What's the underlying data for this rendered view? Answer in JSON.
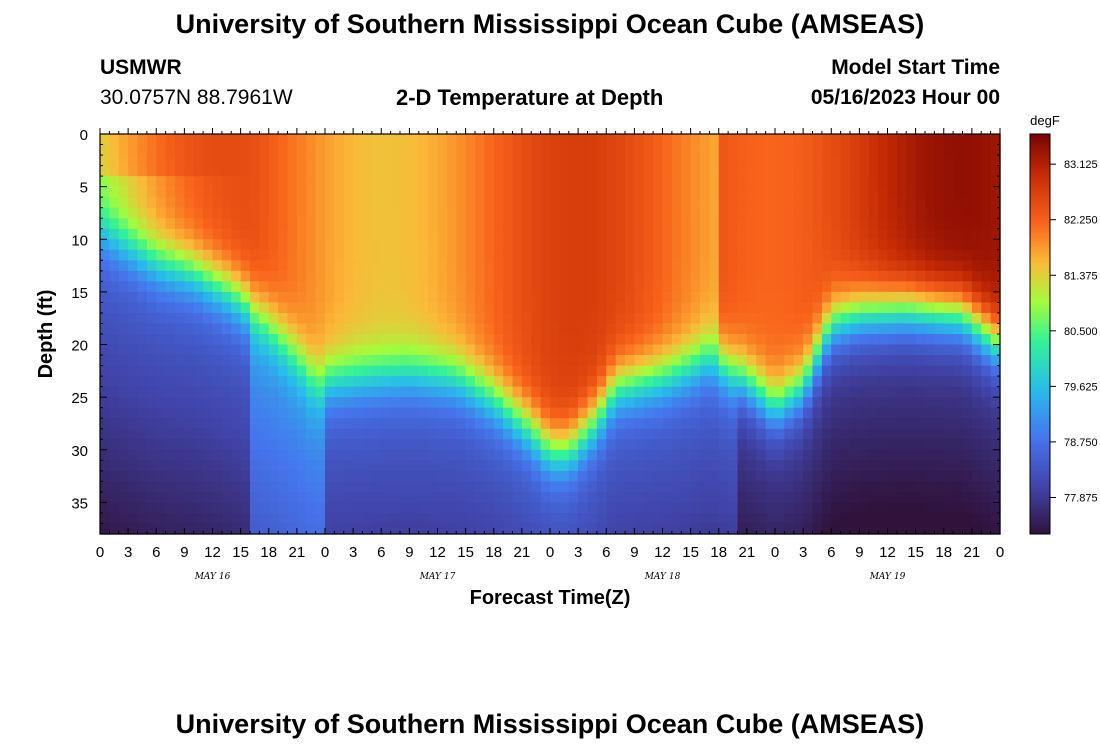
{
  "page": {
    "title": "University of Southern Mississippi Ocean Cube (AMSEAS)",
    "title_repeat": "University of Southern Mississippi Ocean Cube (AMSEAS)",
    "station_name": "USMWR",
    "station_coords": "30.0757N  88.7961W",
    "plot_title": "2-D Temperature at Depth",
    "model_start_label": "Model Start Time",
    "model_start_value": "05/16/2023 Hour 00"
  },
  "chart_data": {
    "type": "heatmap",
    "title": "2-D Temperature at Depth",
    "xlabel": "Forecast Time(Z)",
    "ylabel": "Depth (ft)",
    "x_range_hours": [
      0,
      96
    ],
    "x_tick_labels": [
      "0",
      "3",
      "6",
      "9",
      "12",
      "15",
      "18",
      "21",
      "0",
      "3",
      "6",
      "9",
      "12",
      "15",
      "18",
      "21",
      "0",
      "3",
      "6",
      "9",
      "12",
      "15",
      "18",
      "21",
      "0",
      "3",
      "6",
      "9",
      "12",
      "15",
      "18",
      "21",
      "0"
    ],
    "x_tick_hours": [
      0,
      3,
      6,
      9,
      12,
      15,
      18,
      21,
      24,
      27,
      30,
      33,
      36,
      39,
      42,
      45,
      48,
      51,
      54,
      57,
      60,
      63,
      66,
      69,
      72,
      75,
      78,
      81,
      84,
      87,
      90,
      93,
      96
    ],
    "day_labels": [
      {
        "text": "MAY 16",
        "hour": 12
      },
      {
        "text": "MAY 17",
        "hour": 36
      },
      {
        "text": "MAY 18",
        "hour": 60
      },
      {
        "text": "MAY 19",
        "hour": 84
      }
    ],
    "y_range_ft": [
      0,
      38
    ],
    "y_tick_labels": [
      "0",
      "5",
      "10",
      "15",
      "20",
      "25",
      "30",
      "35"
    ],
    "y_ticks_ft": [
      0,
      5,
      10,
      15,
      20,
      25,
      30,
      35
    ],
    "colorbar": {
      "unit": "degF",
      "range": [
        77.3,
        83.6
      ],
      "tick_labels": [
        "83.125",
        "82.250",
        "81.375",
        "80.500",
        "79.625",
        "78.750",
        "77.875"
      ],
      "tick_values": [
        83.125,
        82.25,
        81.375,
        80.5,
        79.625,
        78.75,
        77.875
      ]
    },
    "thermocline_depth_ft": [
      {
        "hour": 0,
        "depth": 9
      },
      {
        "hour": 2,
        "depth": 10
      },
      {
        "hour": 6,
        "depth": 12
      },
      {
        "hour": 10,
        "depth": 13
      },
      {
        "hour": 14,
        "depth": 15
      },
      {
        "hour": 18,
        "depth": 18
      },
      {
        "hour": 21,
        "depth": 21
      },
      {
        "hour": 23,
        "depth": 23.5
      },
      {
        "hour": 27,
        "depth": 23
      },
      {
        "hour": 33,
        "depth": 22.5
      },
      {
        "hour": 38,
        "depth": 23
      },
      {
        "hour": 42,
        "depth": 25
      },
      {
        "hour": 46,
        "depth": 28
      },
      {
        "hour": 48,
        "depth": 30
      },
      {
        "hour": 50,
        "depth": 30
      },
      {
        "hour": 53,
        "depth": 27
      },
      {
        "hour": 55,
        "depth": 24
      },
      {
        "hour": 60,
        "depth": 23
      },
      {
        "hour": 63,
        "depth": 22
      },
      {
        "hour": 65,
        "depth": 21
      },
      {
        "hour": 69,
        "depth": 23.5
      },
      {
        "hour": 72,
        "depth": 26
      },
      {
        "hour": 75,
        "depth": 24
      },
      {
        "hour": 78,
        "depth": 18
      },
      {
        "hour": 81,
        "depth": 17
      },
      {
        "hour": 86,
        "depth": 16.5
      },
      {
        "hour": 92,
        "depth": 17
      },
      {
        "hour": 96,
        "depth": 20
      }
    ]
  }
}
